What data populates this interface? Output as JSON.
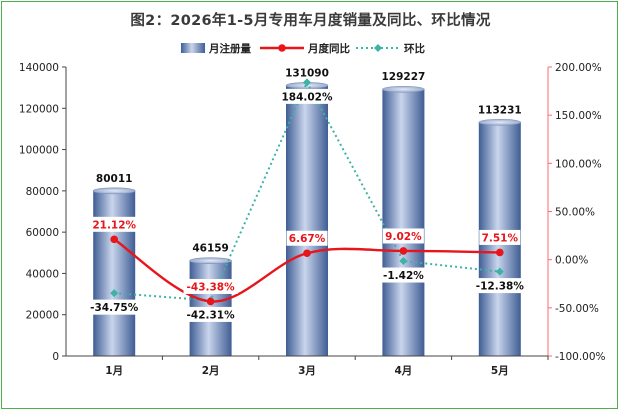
{
  "chart_data": {
    "type": "bar",
    "title": "图2：2026年1-5月专用车月度销量及同比、环比情况",
    "categories": [
      "1月",
      "2月",
      "3月",
      "4月",
      "5月"
    ],
    "series": [
      {
        "name": "月注册量",
        "type": "bar",
        "axis": "left",
        "values": [
          80011,
          46159,
          131090,
          129227,
          113231
        ],
        "labels": [
          "80011",
          "46159",
          "131090",
          "129227",
          "113231"
        ]
      },
      {
        "name": "月度同比",
        "type": "line",
        "axis": "right",
        "values": [
          21.12,
          -43.38,
          6.67,
          9.02,
          7.51
        ],
        "labels": [
          "21.12%",
          "-43.38%",
          "6.67%",
          "9.02%",
          "7.51%"
        ]
      },
      {
        "name": "环比",
        "type": "line",
        "axis": "right",
        "values": [
          -34.75,
          -42.31,
          184.02,
          -1.42,
          -12.38
        ],
        "labels": [
          "-34.75%",
          "-42.31%",
          "184.02%",
          "-1.42%",
          "-12.38%"
        ]
      }
    ],
    "ylim_left": [
      0,
      140000
    ],
    "yticks_left": [
      "0",
      "20000",
      "40000",
      "60000",
      "80000",
      "100000",
      "120000",
      "140000"
    ],
    "ylim_right": [
      -100,
      200
    ],
    "yticks_right": [
      "-100.00%",
      "-50.00%",
      "0.00%",
      "50.00%",
      "100.00%",
      "150.00%",
      "200.00%"
    ],
    "legend_position": "top",
    "colors": {
      "bar": "#4a6ba3",
      "yoy": "#e8151b",
      "mom": "#3db3a6",
      "right_axis": "#ff6b6b",
      "frame": "#4caf50"
    }
  }
}
